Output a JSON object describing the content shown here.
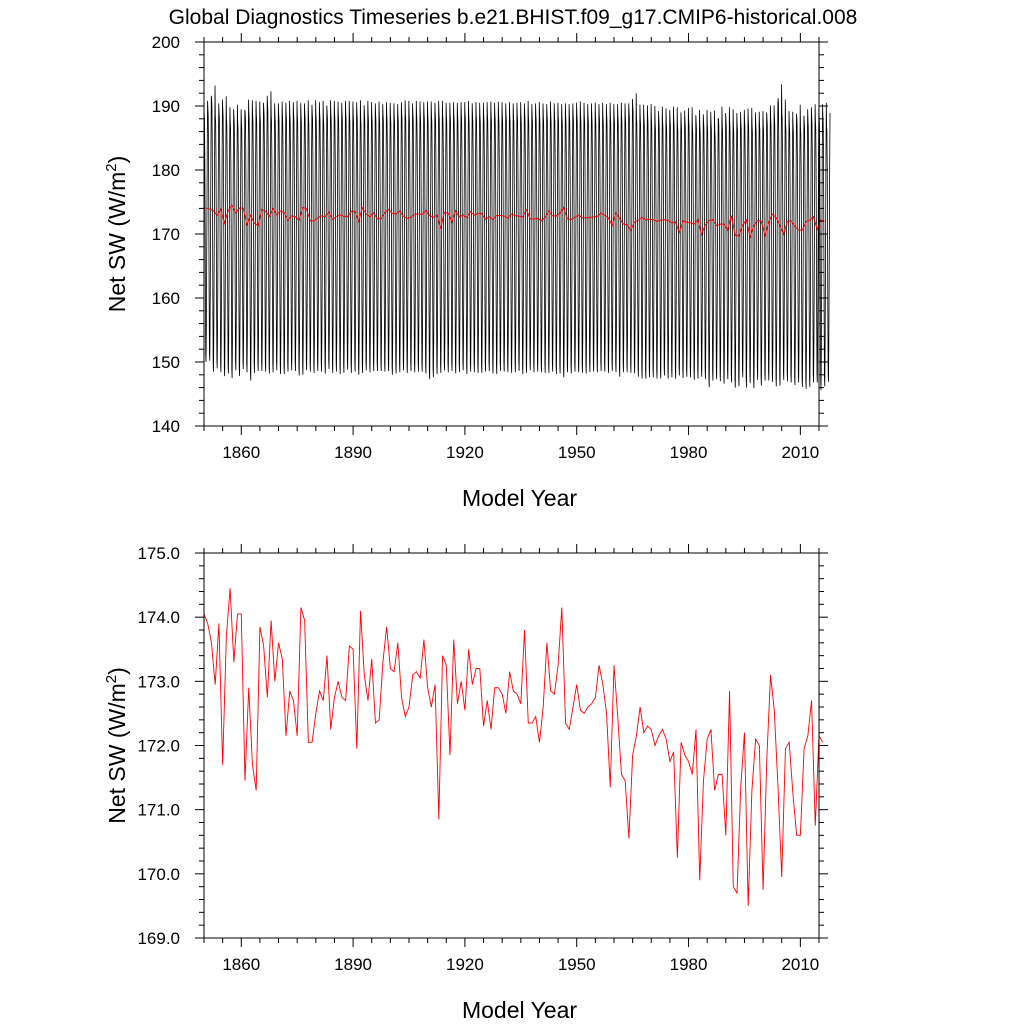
{
  "title": "Global Diagnostics Timeseries b.e21.BHIST.f09_g17.CMIP6-historical.008",
  "chart_data": [
    {
      "type": "line",
      "name": "top-panel-monthly-and-annual",
      "xlabel": "Model Year",
      "ylabel_main": "Net SW (W/m",
      "ylabel_sup": "2",
      "ylabel_end": ")",
      "xlim": [
        1850,
        2015
      ],
      "ylim": [
        140,
        200
      ],
      "xticks": [
        1860,
        1890,
        1920,
        1950,
        1980,
        2010
      ],
      "xtick_labels": [
        "1860",
        "1890",
        "1920",
        "1950",
        "1980",
        "2010"
      ],
      "yticks": [
        140,
        150,
        160,
        170,
        180,
        190,
        200
      ],
      "ytick_labels": [
        "140",
        "150",
        "160",
        "170",
        "180",
        "190",
        "200"
      ],
      "series": [
        {
          "color": "#000000",
          "monthly_cycle_offsets": [
            15.0,
            14.2,
            10.0,
            2.5,
            -7.5,
            -15.0,
            -16.0,
            -12.0,
            -5.0,
            3.0,
            11.0,
            16.5
          ],
          "peak_values": [
            190.8,
            191.6,
            193.2,
            190.4,
            191.0,
            191.5,
            189.8,
            189.5,
            190.2,
            189.5,
            189.4,
            191.0,
            190.9,
            190.8,
            190.7,
            190.5,
            191.6,
            192.3,
            190.4,
            190.4,
            190.7,
            190.5,
            190.8,
            190.6,
            190.8,
            190.5,
            190.4,
            190.9,
            190.2,
            190.9,
            190.6,
            190.8,
            190.1,
            190.9,
            190.8,
            190.7,
            190.5,
            190.8,
            190.8,
            190.7,
            190.6,
            190.9,
            190.1,
            190.8,
            190.6,
            190.4,
            190.7,
            190.3,
            190.6,
            190.5,
            190.4,
            190.3,
            190.6,
            190.9,
            190.8,
            190.4,
            190.8,
            190.7,
            190.6,
            190.7,
            190.7,
            190.5,
            190.8,
            190.8,
            190.5,
            190.5,
            190.6,
            190.5,
            190.6,
            190.6,
            190.8,
            190.4,
            190.6,
            190.5,
            190.5,
            190.6,
            190.7,
            190.5,
            190.7,
            190.6,
            190.4,
            190.6,
            190.4,
            190.5,
            190.6,
            190.4,
            190.8,
            190.3,
            190.4,
            190.6,
            190.4,
            190.3,
            190.7,
            190.4,
            190.5,
            190.3,
            190.4,
            190.3,
            190.4,
            190.5,
            190.7,
            190.5,
            190.3,
            190.4,
            190.5,
            190.3,
            190.5,
            190.3,
            190.5,
            190.3,
            190.3,
            190.5,
            190.4,
            190.4,
            191.1,
            192.0,
            190.2,
            190.2,
            190.1,
            190.3,
            190.0,
            189.2,
            189.9,
            189.6,
            189.4,
            189.9,
            189.8,
            189.0,
            189.3,
            189.7,
            189.8,
            188.6,
            189.4,
            188.7,
            189.4,
            189.1,
            189.3,
            188.1,
            189.9,
            188.9,
            189.8,
            189.5,
            188.9,
            189.1,
            189.4,
            189.6,
            189.7,
            189.0,
            189.1,
            189.2,
            189.0,
            190.1,
            190.1,
            190.3,
            193.4,
            191.0,
            189.2,
            189.1,
            188.8,
            190.2,
            188.5,
            189.5,
            189.8,
            190.3,
            189.6,
            190.3,
            190.5,
            188.9
          ],
          "trough_values": [
            150.0,
            150.2,
            148.5,
            149.0,
            148.4,
            147.8,
            148.2,
            147.5,
            148.7,
            147.8,
            148.9,
            148.4,
            147.1,
            148.3,
            148.6,
            148.6,
            148.5,
            148.2,
            148.4,
            148.7,
            148.1,
            148.1,
            148.5,
            148.7,
            148.6,
            147.9,
            148.0,
            148.7,
            148.5,
            148.3,
            148.6,
            148.5,
            148.2,
            148.9,
            148.3,
            148.5,
            148.1,
            148.3,
            148.8,
            148.3,
            148.5,
            148.0,
            148.3,
            148.7,
            148.4,
            148.6,
            148.6,
            148.6,
            148.5,
            148.6,
            148.0,
            148.2,
            148.4,
            148.7,
            148.3,
            148.6,
            148.4,
            148.5,
            148.5,
            148.2,
            147.3,
            147.6,
            148.1,
            148.3,
            148.7,
            148.4,
            148.6,
            148.2,
            148.4,
            148.7,
            148.1,
            148.5,
            148.4,
            148.3,
            148.3,
            148.5,
            148.6,
            148.2,
            148.1,
            148.6,
            148.5,
            148.4,
            148.3,
            148.4,
            148.6,
            148.1,
            148.3,
            148.7,
            148.4,
            148.5,
            148.4,
            148.3,
            148.3,
            148.5,
            148.1,
            148.2,
            147.6,
            148.4,
            148.2,
            148.5,
            148.4,
            148.3,
            148.2,
            148.4,
            148.5,
            148.4,
            148.6,
            148.5,
            148.3,
            148.6,
            148.4,
            147.7,
            148.4,
            148.4,
            148.3,
            148.2,
            147.7,
            147.4,
            147.4,
            147.6,
            147.6,
            147.4,
            147.4,
            147.9,
            147.4,
            147.6,
            147.4,
            147.9,
            147.5,
            147.7,
            147.6,
            147.2,
            147.4,
            147.7,
            147.3,
            146.1,
            147.1,
            147.3,
            147.0,
            146.6,
            147.3,
            146.8,
            146.0,
            146.2,
            147.6,
            146.0,
            146.7,
            145.9,
            147.2,
            146.3,
            147.1,
            147.1,
            146.9,
            146.2,
            146.3,
            147.2,
            147.0,
            146.8,
            146.4,
            146.8,
            146.1,
            145.8,
            146.1,
            146.8,
            146.8,
            145.6,
            146.2,
            146.9,
            147.1
          ]
        },
        {
          "color": "#ff0000",
          "use_annual_means": true
        }
      ]
    },
    {
      "type": "line",
      "name": "bottom-panel-annual-means",
      "xlabel": "Model Year",
      "ylabel_main": "Net SW (W/m",
      "ylabel_sup": "2",
      "ylabel_end": ")",
      "xlim": [
        1850,
        2015
      ],
      "ylim": [
        169.0,
        175.0
      ],
      "xticks": [
        1860,
        1890,
        1920,
        1950,
        1980,
        2010
      ],
      "xtick_labels": [
        "1860",
        "1890",
        "1920",
        "1950",
        "1980",
        "2010"
      ],
      "yticks": [
        169.0,
        170.0,
        171.0,
        172.0,
        173.0,
        174.0,
        175.0
      ],
      "ytick_labels": [
        "169.0",
        "170.0",
        "171.0",
        "172.0",
        "173.0",
        "174.0",
        "175.0"
      ],
      "series": [
        {
          "color": "#ff0000",
          "x_start": 1850,
          "x_end": 2014,
          "values": [
            174.05,
            173.9,
            173.6,
            172.95,
            173.9,
            171.7,
            173.7,
            174.45,
            173.3,
            174.05,
            174.05,
            171.45,
            172.9,
            171.7,
            171.3,
            173.85,
            173.55,
            172.75,
            173.95,
            173.0,
            173.6,
            173.35,
            172.15,
            172.85,
            172.7,
            172.15,
            174.15,
            173.95,
            172.05,
            172.05,
            172.5,
            172.85,
            172.7,
            173.4,
            172.25,
            172.75,
            173.0,
            172.75,
            172.7,
            173.55,
            173.5,
            171.95,
            174.1,
            173.1,
            172.7,
            173.35,
            172.35,
            172.4,
            173.3,
            173.85,
            173.2,
            173.15,
            173.6,
            172.75,
            172.45,
            172.6,
            173.1,
            173.15,
            173.05,
            173.65,
            172.9,
            172.6,
            172.95,
            170.85,
            173.4,
            173.25,
            171.85,
            173.65,
            172.65,
            173.0,
            172.55,
            173.5,
            172.95,
            173.2,
            173.2,
            172.3,
            172.7,
            172.25,
            172.9,
            172.9,
            172.8,
            172.5,
            173.15,
            172.85,
            172.8,
            172.65,
            173.8,
            172.35,
            172.35,
            172.45,
            172.05,
            172.6,
            173.6,
            172.85,
            172.8,
            173.25,
            174.15,
            172.35,
            172.25,
            172.6,
            172.95,
            172.55,
            172.5,
            172.6,
            172.65,
            172.75,
            173.25,
            172.95,
            172.5,
            171.35,
            173.25,
            172.45,
            171.55,
            171.45,
            170.55,
            171.85,
            172.15,
            172.6,
            172.2,
            172.3,
            172.25,
            172.0,
            172.15,
            172.25,
            172.1,
            171.75,
            171.9,
            170.25,
            172.05,
            171.85,
            171.75,
            171.55,
            172.25,
            169.9,
            171.45,
            172.1,
            172.25,
            171.3,
            171.55,
            171.55,
            170.6,
            172.85,
            169.8,
            169.7,
            171.35,
            172.2,
            169.5,
            171.3,
            172.1,
            172.0,
            169.75,
            171.8,
            173.1,
            172.55,
            171.35,
            169.95,
            171.95,
            172.05,
            171.25,
            170.6,
            170.6,
            171.95,
            172.15,
            172.7,
            170.75,
            172.15,
            172.05
          ]
        }
      ]
    }
  ]
}
